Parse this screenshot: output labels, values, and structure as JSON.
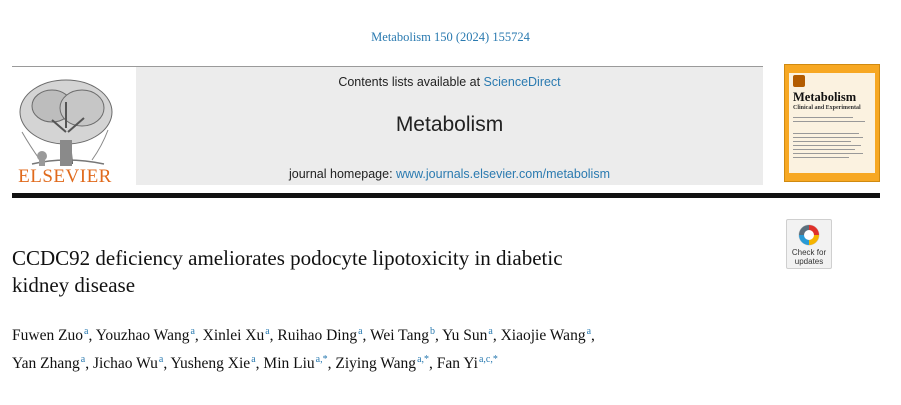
{
  "citation": "Metabolism 150 (2024) 155724",
  "publisher": {
    "name": "ELSEVIER"
  },
  "masthead": {
    "contents_prefix": "Contents lists available at ",
    "contents_link": "ScienceDirect",
    "journal_title": "Metabolism",
    "homepage_prefix": "journal homepage: ",
    "homepage_link": "www.journals.elsevier.com/metabolism"
  },
  "cover": {
    "title": "Metabolism",
    "subtitle": "Clinical and Experimental"
  },
  "updates_badge": {
    "line1": "Check for",
    "line2": "updates"
  },
  "article": {
    "title_line1": "CCDC92 deficiency ameliorates podocyte lipotoxicity in diabetic",
    "title_line2": "kidney disease"
  },
  "authors": [
    {
      "name": "Fuwen Zuo",
      "aff": "a",
      "sep": ", "
    },
    {
      "name": "Youzhao Wang",
      "aff": "a",
      "sep": ", "
    },
    {
      "name": "Xinlei Xu",
      "aff": "a",
      "sep": ", "
    },
    {
      "name": "Ruihao Ding",
      "aff": "a",
      "sep": ", "
    },
    {
      "name": "Wei Tang",
      "aff": "b",
      "sep": ", "
    },
    {
      "name": "Yu Sun",
      "aff": "a",
      "sep": ", "
    },
    {
      "name": "Xiaojie Wang",
      "aff": "a",
      "sep": ","
    },
    {
      "name": "Yan Zhang",
      "aff": "a",
      "sep": ", "
    },
    {
      "name": "Jichao Wu",
      "aff": "a",
      "sep": ", "
    },
    {
      "name": "Yusheng Xie",
      "aff": "a",
      "sep": ", "
    },
    {
      "name": "Min Liu",
      "aff": "a,*",
      "sep": ", "
    },
    {
      "name": "Ziying Wang",
      "aff": "a,*",
      "sep": ", "
    },
    {
      "name": "Fan Yi",
      "aff": "a,c,*",
      "sep": ""
    }
  ],
  "colors": {
    "link": "#2a7ab0",
    "publisher_orange": "#e06a1c",
    "cover_orange": "#f7a823",
    "masthead_bg": "#ececec"
  }
}
